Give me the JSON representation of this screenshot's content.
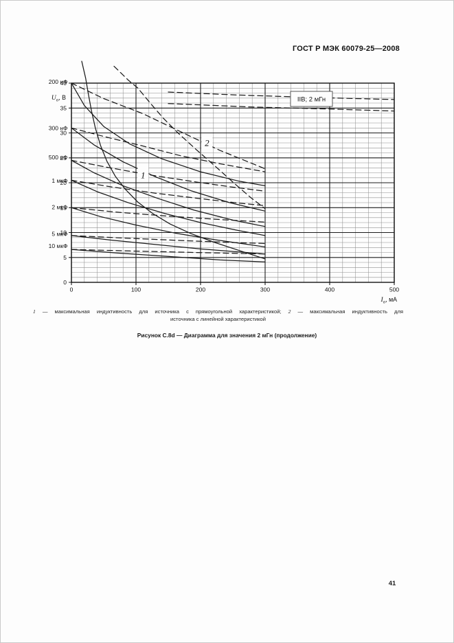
{
  "header": {
    "title": "ГОСТ Р МЭК 60079-25—2008"
  },
  "figure": {
    "footnote": {
      "ref1": "1",
      "text1": " — максимальная индуктивность для источника с прямоугольной характеристикой; ",
      "ref2": "2",
      "text2": " — максимальная индуктивность для",
      "line2": "источника с линейной характеристикой"
    },
    "caption": "Рисунок С.8d — Диаграмма для значения 2 мГн (продолжение)"
  },
  "page_number": "41",
  "colors": {
    "curve": "#1a1a1a",
    "grid_minor": "#909090",
    "grid_major": "#1b1b1b",
    "frame": "#111111",
    "paper": "#fdfdfd"
  },
  "chart_data": {
    "type": "line",
    "annotation_box": "IIB; 2 мГн",
    "x_axis": {
      "symbol": "I",
      "sub": "о",
      "unit": "мА",
      "min": 0,
      "max": 500,
      "ticks": [
        0,
        100,
        200,
        300,
        400,
        500
      ],
      "minor_step": 20
    },
    "y_axis": {
      "symbol": "U",
      "sub": "о",
      "unit": "В",
      "min": 0,
      "max": 40,
      "ticks": [
        0,
        5,
        10,
        15,
        20,
        25,
        30,
        35,
        40
      ],
      "minor_step": 1
    },
    "grid": true,
    "capacitance_labels": [
      {
        "text": "200 нФ",
        "v": 40.3
      },
      {
        "text": "300 нФ",
        "v": 31.0
      },
      {
        "text": "500 нФ",
        "v": 25.1
      },
      {
        "text": "1 мкФ",
        "v": 20.4
      },
      {
        "text": "2 мкФ",
        "v": 15.1
      },
      {
        "text": "5 мкФ",
        "v": 9.7
      },
      {
        "text": "10 мкФ",
        "v": 7.3
      }
    ],
    "curve_labels": [
      {
        "text": "1",
        "i": 111,
        "v": 21.6
      },
      {
        "text": "2",
        "i": 210,
        "v": 28.1
      }
    ],
    "series": [
      {
        "name": "inductance-limit-1-rectangular",
        "style": "solid",
        "points": [
          [
            16,
            44.4
          ],
          [
            22,
            41
          ],
          [
            26,
            38
          ],
          [
            31,
            34.5
          ],
          [
            37,
            31
          ],
          [
            45,
            27.5
          ],
          [
            55,
            24.3
          ],
          [
            68,
            21.3
          ],
          [
            84,
            18.6
          ],
          [
            103,
            16.1
          ],
          [
            126,
            13.8
          ],
          [
            153,
            11.7
          ],
          [
            185,
            9.8
          ],
          [
            222,
            8
          ],
          [
            262,
            6.3
          ],
          [
            300,
            4.7
          ]
        ]
      },
      {
        "name": "inductance-limit-2-linear",
        "style": "dashed",
        "points": [
          [
            66,
            43.4
          ],
          [
            88,
            40.6
          ],
          [
            103,
            39
          ],
          [
            122,
            36
          ],
          [
            142,
            33
          ],
          [
            165,
            30
          ],
          [
            192,
            26.8
          ],
          [
            222,
            23.4
          ],
          [
            252,
            19.9
          ],
          [
            278,
            17
          ],
          [
            300,
            14.8
          ]
        ]
      },
      {
        "name": "c200nF-rectangular",
        "style": "solid",
        "points": [
          [
            0,
            40
          ],
          [
            20,
            35.5
          ],
          [
            50,
            31.3
          ],
          [
            90,
            27.8
          ],
          [
            140,
            24.8
          ],
          [
            200,
            22.2
          ],
          [
            260,
            20.3
          ],
          [
            300,
            19.4
          ]
        ]
      },
      {
        "name": "c200nF-linear",
        "style": "dashed",
        "points": [
          [
            0,
            40
          ],
          [
            50,
            36.9
          ],
          [
            110,
            33.9
          ],
          [
            170,
            30.2
          ],
          [
            230,
            26.5
          ],
          [
            300,
            22.8
          ]
        ]
      },
      {
        "name": "c300nF-rectangular",
        "style": "solid",
        "points": [
          [
            0,
            31
          ],
          [
            35,
            27.6
          ],
          [
            80,
            24.2
          ],
          [
            130,
            21.2
          ],
          [
            185,
            18.4
          ],
          [
            245,
            16
          ],
          [
            300,
            14.3
          ]
        ]
      },
      {
        "name": "c300nF-linear",
        "style": "dashed",
        "points": [
          [
            0,
            31
          ],
          [
            50,
            29.3
          ],
          [
            110,
            27.4
          ],
          [
            170,
            25.4
          ],
          [
            230,
            23.8
          ],
          [
            300,
            22.2
          ]
        ]
      },
      {
        "name": "c500nF-rectangular",
        "style": "solid",
        "points": [
          [
            0,
            24.5
          ],
          [
            35,
            22
          ],
          [
            80,
            19.4
          ],
          [
            135,
            16.8
          ],
          [
            190,
            14.5
          ],
          [
            250,
            12.5
          ],
          [
            300,
            11.2
          ]
        ]
      },
      {
        "name": "c500nF-linear",
        "style": "dashed",
        "points": [
          [
            0,
            24.5
          ],
          [
            55,
            23.1
          ],
          [
            120,
            21.6
          ],
          [
            185,
            20.3
          ],
          [
            245,
            19.2
          ],
          [
            300,
            18.3
          ]
        ]
      },
      {
        "name": "c1uF-rectangular",
        "style": "solid",
        "points": [
          [
            0,
            20.5
          ],
          [
            40,
            18.2
          ],
          [
            90,
            15.9
          ],
          [
            145,
            13.8
          ],
          [
            200,
            12
          ],
          [
            255,
            10.5
          ],
          [
            300,
            9.4
          ]
        ]
      },
      {
        "name": "c1uF-linear",
        "style": "dashed",
        "points": [
          [
            0,
            20.5
          ],
          [
            60,
            19.2
          ],
          [
            130,
            17.9
          ],
          [
            200,
            16.8
          ],
          [
            260,
            15.9
          ],
          [
            300,
            15.4
          ]
        ]
      },
      {
        "name": "c2uF-rectangular",
        "style": "solid",
        "points": [
          [
            0,
            15
          ],
          [
            45,
            13.2
          ],
          [
            100,
            11.5
          ],
          [
            160,
            9.9
          ],
          [
            220,
            8.6
          ],
          [
            300,
            7.1
          ]
        ]
      },
      {
        "name": "c2uF-linear",
        "style": "dashed",
        "points": [
          [
            0,
            15
          ],
          [
            70,
            14.1
          ],
          [
            150,
            13.3
          ],
          [
            230,
            12.6
          ],
          [
            300,
            12.1
          ]
        ]
      },
      {
        "name": "c5uF-rectangular",
        "style": "solid",
        "points": [
          [
            0,
            9.4
          ],
          [
            60,
            8.5
          ],
          [
            130,
            7.6
          ],
          [
            200,
            6.7
          ],
          [
            260,
            6.1
          ],
          [
            300,
            5.7
          ]
        ]
      },
      {
        "name": "c5uF-linear",
        "style": "dashed",
        "points": [
          [
            0,
            9.4
          ],
          [
            80,
            8.9
          ],
          [
            170,
            8.4
          ],
          [
            250,
            8
          ],
          [
            300,
            7.8
          ]
        ]
      },
      {
        "name": "c10uF-rectangular",
        "style": "solid",
        "points": [
          [
            0,
            6.6
          ],
          [
            70,
            5.9
          ],
          [
            150,
            5.2
          ],
          [
            230,
            4.5
          ],
          [
            300,
            4.1
          ]
        ]
      },
      {
        "name": "c10uF-linear",
        "style": "dashed",
        "points": [
          [
            0,
            6.6
          ],
          [
            90,
            6.3
          ],
          [
            190,
            6
          ],
          [
            300,
            5.7
          ]
        ]
      },
      {
        "name": "top-dashed-a",
        "style": "dashed",
        "points": [
          [
            150,
            38.2
          ],
          [
            260,
            37.6
          ],
          [
            380,
            37.1
          ],
          [
            500,
            36.7
          ]
        ]
      },
      {
        "name": "top-dashed-b",
        "style": "dashed",
        "points": [
          [
            150,
            35.9
          ],
          [
            280,
            35.2
          ],
          [
            400,
            34.8
          ],
          [
            500,
            34.4
          ]
        ]
      }
    ]
  }
}
